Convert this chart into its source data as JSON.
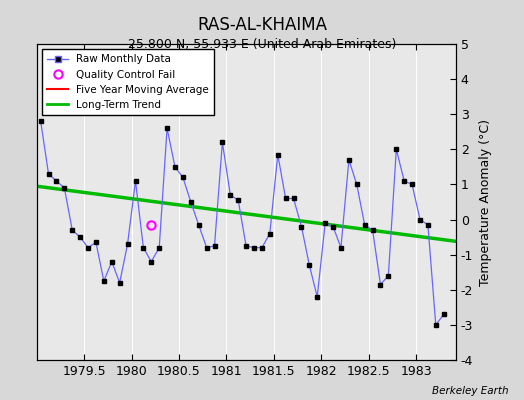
{
  "title": "RAS-AL-KHAIMA",
  "subtitle": "25.800 N, 55.933 E (United Arab Emirates)",
  "ylabel": "Temperature Anomaly (°C)",
  "credit": "Berkeley Earth",
  "xlim": [
    1979.0,
    1983.42
  ],
  "ylim": [
    -4,
    5
  ],
  "yticks": [
    -4,
    -3,
    -2,
    -1,
    0,
    1,
    2,
    3,
    4,
    5
  ],
  "xticks": [
    1979.5,
    1980.0,
    1980.5,
    1981.0,
    1981.5,
    1982.0,
    1982.5,
    1983.0
  ],
  "xticklabels": [
    "1979.5",
    "1980",
    "1980.5",
    "1981",
    "1981.5",
    "1982",
    "1982.5",
    "1983"
  ],
  "bg_color": "#d8d8d8",
  "plot_bg": "#e8e8e8",
  "raw_x": [
    1979.042,
    1979.125,
    1979.208,
    1979.292,
    1979.375,
    1979.458,
    1979.542,
    1979.625,
    1979.708,
    1979.792,
    1979.875,
    1979.958,
    1980.042,
    1980.125,
    1980.208,
    1980.292,
    1980.375,
    1980.458,
    1980.542,
    1980.625,
    1980.708,
    1980.792,
    1980.875,
    1980.958,
    1981.042,
    1981.125,
    1981.208,
    1981.292,
    1981.375,
    1981.458,
    1981.542,
    1981.625,
    1981.708,
    1981.792,
    1981.875,
    1981.958,
    1982.042,
    1982.125,
    1982.208,
    1982.292,
    1982.375,
    1982.458,
    1982.542,
    1982.625,
    1982.708,
    1982.792,
    1982.875,
    1982.958,
    1983.042,
    1983.125,
    1983.208,
    1983.292
  ],
  "raw_y": [
    2.8,
    1.3,
    1.1,
    0.9,
    -0.3,
    -0.5,
    -0.8,
    -0.65,
    -1.75,
    -1.2,
    -1.8,
    -0.7,
    1.1,
    -0.8,
    -1.2,
    -0.8,
    2.6,
    1.5,
    1.2,
    0.5,
    -0.15,
    -0.8,
    -0.75,
    2.2,
    0.7,
    0.55,
    -0.75,
    -0.8,
    -0.8,
    -0.4,
    1.85,
    0.6,
    0.6,
    -0.2,
    -1.3,
    -2.2,
    -0.1,
    -0.2,
    -0.8,
    1.7,
    1.0,
    -0.15,
    -0.3,
    -1.85,
    -1.6,
    2.0,
    1.1,
    1.0,
    0.0,
    -0.15,
    -3.0,
    -2.7
  ],
  "qc_fail_x": [
    1980.208
  ],
  "qc_fail_y": [
    -0.15
  ],
  "trend_x": [
    1979.0,
    1983.42
  ],
  "trend_y": [
    0.95,
    -0.62
  ],
  "raw_line_color": "#6666ff",
  "raw_marker_color": "#000000",
  "trend_color": "#00bb00",
  "ma_color": "#ff0000",
  "qc_color": "#ff00ff",
  "title_fontsize": 12,
  "subtitle_fontsize": 9,
  "tick_fontsize": 9,
  "ylabel_fontsize": 9
}
